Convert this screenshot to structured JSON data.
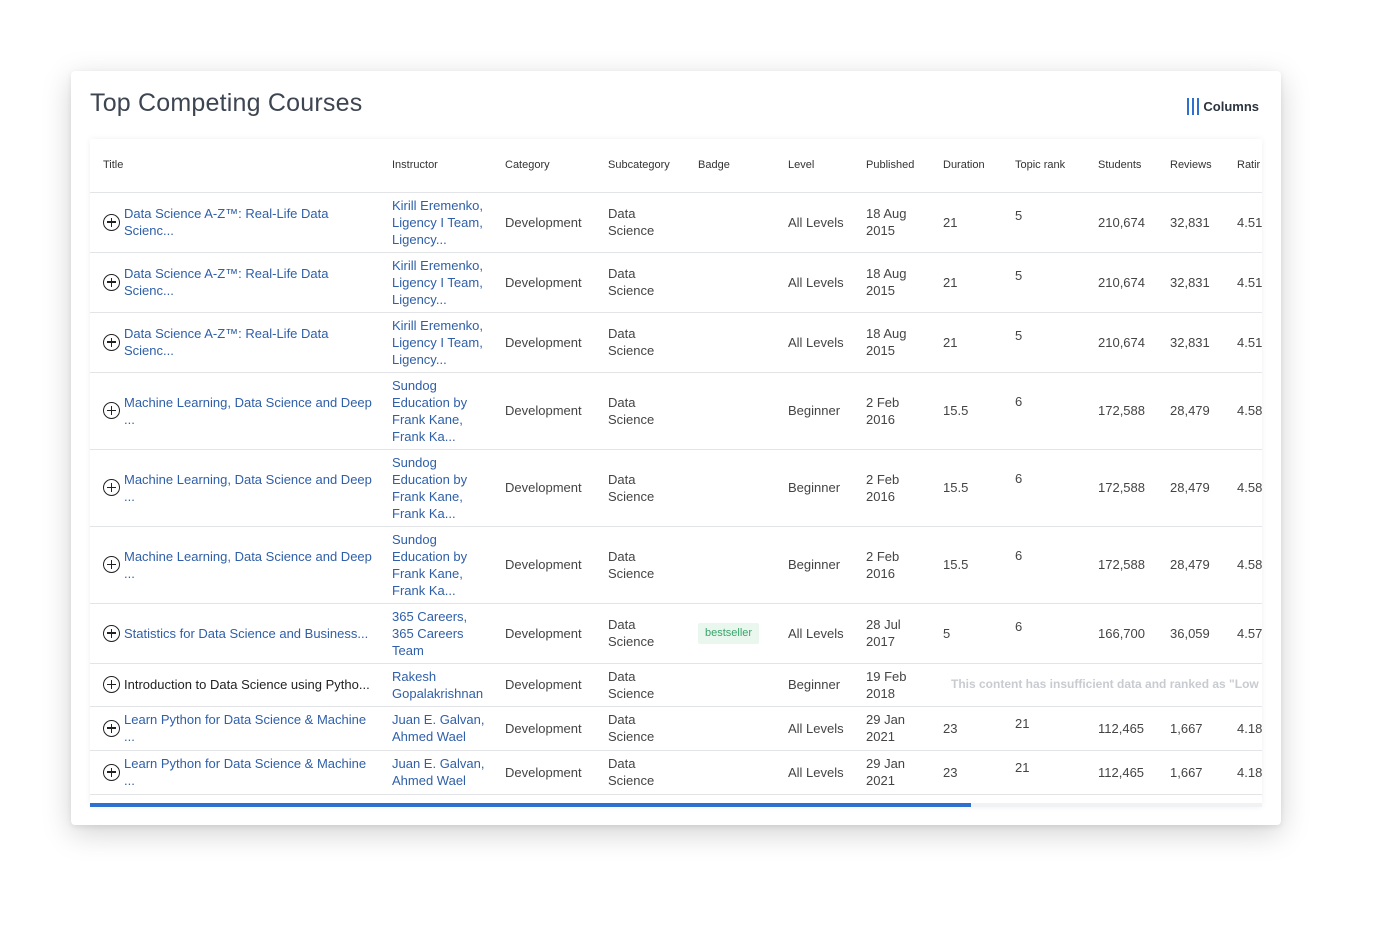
{
  "card": {
    "title": "Top Competing Courses",
    "columns_label": "Columns"
  },
  "colors": {
    "accent": "#2f6fd0",
    "link": "#2f5fa8",
    "badge_bg": "#e9f7ef",
    "badge_text": "#3aa56a",
    "muted": "#c8cbd0"
  },
  "table": {
    "headers": [
      "Title",
      "Instructor",
      "Category",
      "Subcategory",
      "Badge",
      "Level",
      "Published",
      "Duration",
      "Topic rank",
      "Students",
      "Reviews",
      "Ratir"
    ],
    "rows": [
      {
        "title": "Data Science A-Z™: Real-Life Data Scienc...",
        "title_link": true,
        "instructor": "Kirill Eremenko, Ligency I Team, Ligency...",
        "category": "Development",
        "subcategory": "Data Science",
        "badge": "",
        "level": "All Levels",
        "published": "18 Aug 2015",
        "duration": "21",
        "topic_rank": "5",
        "students": "210,674",
        "reviews": "32,831",
        "rating": "4.51"
      },
      {
        "title": "Data Science A-Z™: Real-Life Data Scienc...",
        "title_link": true,
        "instructor": "Kirill Eremenko, Ligency I Team, Ligency...",
        "category": "Development",
        "subcategory": "Data Science",
        "badge": "",
        "level": "All Levels",
        "published": "18 Aug 2015",
        "duration": "21",
        "topic_rank": "5",
        "students": "210,674",
        "reviews": "32,831",
        "rating": "4.51"
      },
      {
        "title": "Data Science A-Z™: Real-Life Data Scienc...",
        "title_link": true,
        "instructor": "Kirill Eremenko, Ligency I Team, Ligency...",
        "category": "Development",
        "subcategory": "Data Science",
        "badge": "",
        "level": "All Levels",
        "published": "18 Aug 2015",
        "duration": "21",
        "topic_rank": "5",
        "students": "210,674",
        "reviews": "32,831",
        "rating": "4.51"
      },
      {
        "title": "Machine Learning, Data Science and Deep ...",
        "title_link": true,
        "instructor": "Sundog Education by Frank Kane, Frank Ka...",
        "category": "Development",
        "subcategory": "Data Science",
        "badge": "",
        "level": "Beginner",
        "published": "2 Feb 2016",
        "duration": "15.5",
        "topic_rank": "6",
        "students": "172,588",
        "reviews": "28,479",
        "rating": "4.58"
      },
      {
        "title": "Machine Learning, Data Science and Deep ...",
        "title_link": true,
        "instructor": "Sundog Education by Frank Kane, Frank Ka...",
        "category": "Development",
        "subcategory": "Data Science",
        "badge": "",
        "level": "Beginner",
        "published": "2 Feb 2016",
        "duration": "15.5",
        "topic_rank": "6",
        "students": "172,588",
        "reviews": "28,479",
        "rating": "4.58"
      },
      {
        "title": "Machine Learning, Data Science and Deep ...",
        "title_link": true,
        "instructor": "Sundog Education by Frank Kane, Frank Ka...",
        "category": "Development",
        "subcategory": "Data Science",
        "badge": "",
        "level": "Beginner",
        "published": "2 Feb 2016",
        "duration": "15.5",
        "topic_rank": "6",
        "students": "172,588",
        "reviews": "28,479",
        "rating": "4.58"
      },
      {
        "title": "Statistics for Data Science and Business...",
        "title_link": true,
        "instructor": "365 Careers, 365 Careers Team",
        "category": "Development",
        "subcategory": "Data Science",
        "badge": "bestseller",
        "level": "All Levels",
        "published": "28 Jul 2017",
        "duration": "5",
        "topic_rank": "6",
        "students": "166,700",
        "reviews": "36,059",
        "rating": "4.57"
      },
      {
        "title": "Introduction to Data Science using Pytho...",
        "title_link": false,
        "instructor": "Rakesh Gopalakrishnan",
        "category": "Development",
        "subcategory": "Data Science",
        "badge": "",
        "level": "Beginner",
        "published": "19 Feb 2018",
        "low_data_message": "This content has insufficient data and ranked as \"Low Pc"
      },
      {
        "title": "Learn Python for Data Science & Machine ...",
        "title_link": true,
        "instructor": "Juan E. Galvan, Ahmed Wael",
        "category": "Development",
        "subcategory": "Data Science",
        "badge": "",
        "level": "All Levels",
        "published": "29 Jan 2021",
        "duration": "23",
        "topic_rank": "21",
        "students": "112,465",
        "reviews": "1,667",
        "rating": "4.18"
      },
      {
        "title": "Learn Python for Data Science & Machine ...",
        "title_link": true,
        "instructor": "Juan E. Galvan, Ahmed Wael",
        "category": "Development",
        "subcategory": "Data Science",
        "badge": "",
        "level": "All Levels",
        "published": "29 Jan 2021",
        "duration": "23",
        "topic_rank": "21",
        "students": "112,465",
        "reviews": "1,667",
        "rating": "4.18"
      }
    ]
  },
  "scroll": {
    "position": 0.75
  }
}
